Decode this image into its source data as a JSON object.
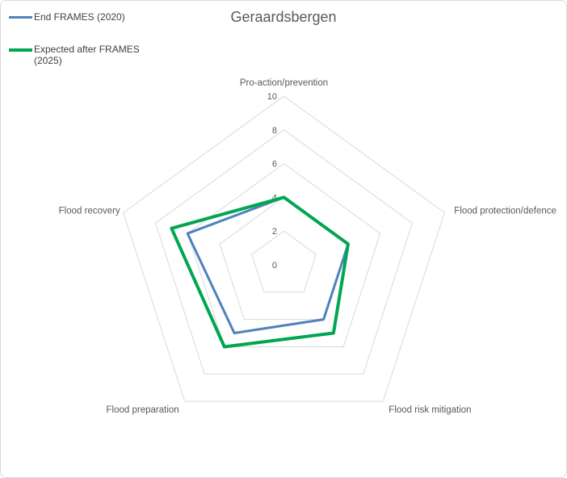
{
  "title": "Geraardsbergen",
  "colors": {
    "series1": "#4F81BD",
    "series2": "#00A651",
    "gridline": "#D9D9D9",
    "axis_text": "#595959",
    "legend_text": "#404040",
    "border": "#D9D9D9",
    "background": "#FFFFFF"
  },
  "legend": {
    "items": [
      {
        "label": "End FRAMES (2020)",
        "color": "#4F81BD"
      },
      {
        "label": "Expected after FRAMES (2025)",
        "color": "#00A651"
      }
    ]
  },
  "chart_data": {
    "type": "radar",
    "title": "Geraardsbergen",
    "categories": [
      "Pro-action/prevention",
      "Flood protection/defence",
      "Flood risk mitigation",
      "Flood preparation",
      "Flood recovery"
    ],
    "series": [
      {
        "name": "End FRAMES (2020)",
        "color": "#4F81BD",
        "width": 3,
        "values": [
          4,
          4,
          4,
          5,
          6
        ]
      },
      {
        "name": "Expected after FRAMES (2025)",
        "color": "#00A651",
        "width": 4,
        "values": [
          4,
          4,
          5,
          6,
          7
        ]
      }
    ],
    "ticks": [
      0,
      2,
      4,
      6,
      8,
      10
    ],
    "rlim": [
      0,
      10
    ],
    "grid": true,
    "gridline_color": "#D9D9D9",
    "legend_position": "top-left"
  }
}
